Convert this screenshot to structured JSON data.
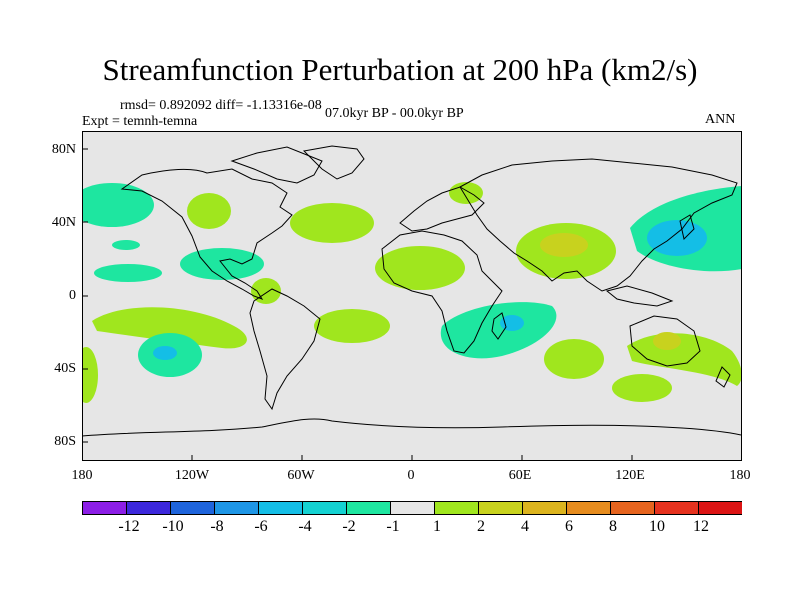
{
  "title": "Streamfunction Perturbation at 200 hPa (km2/s)",
  "subtitle_stats": "rmsd= 0.892092 diff= -1.13316e-08",
  "subtitle_left": "Expt = temnh-temna",
  "subtitle_center": "07.0kyr BP - 00.0kyr BP",
  "subtitle_right": "ANN",
  "y_ticks": [
    "80N",
    "40N",
    "0",
    "40S",
    "80S"
  ],
  "x_ticks": [
    "180",
    "120W",
    "60W",
    "0",
    "60E",
    "120E",
    "180"
  ],
  "colorbar": {
    "labels": [
      "-12",
      "-10",
      "-8",
      "-6",
      "-4",
      "-2",
      "-1",
      "1",
      "2",
      "4",
      "6",
      "8",
      "10",
      "12"
    ],
    "colors": [
      "#8c1ee6",
      "#3c28dc",
      "#1e64dc",
      "#1e96e6",
      "#14bee6",
      "#14d2d2",
      "#1ee6a0",
      "#e6e6e6",
      "#a0e61e",
      "#c8d21e",
      "#dcb41e",
      "#e68c1e",
      "#e6641e",
      "#e6321e",
      "#dc1414"
    ]
  },
  "colors": {
    "background": "#e6e6e6",
    "pos1": "#a0e61e",
    "pos2": "#c8d21e",
    "neg1": "#1ee6a0",
    "neg2": "#14d2d2",
    "neg3": "#14bee6"
  }
}
